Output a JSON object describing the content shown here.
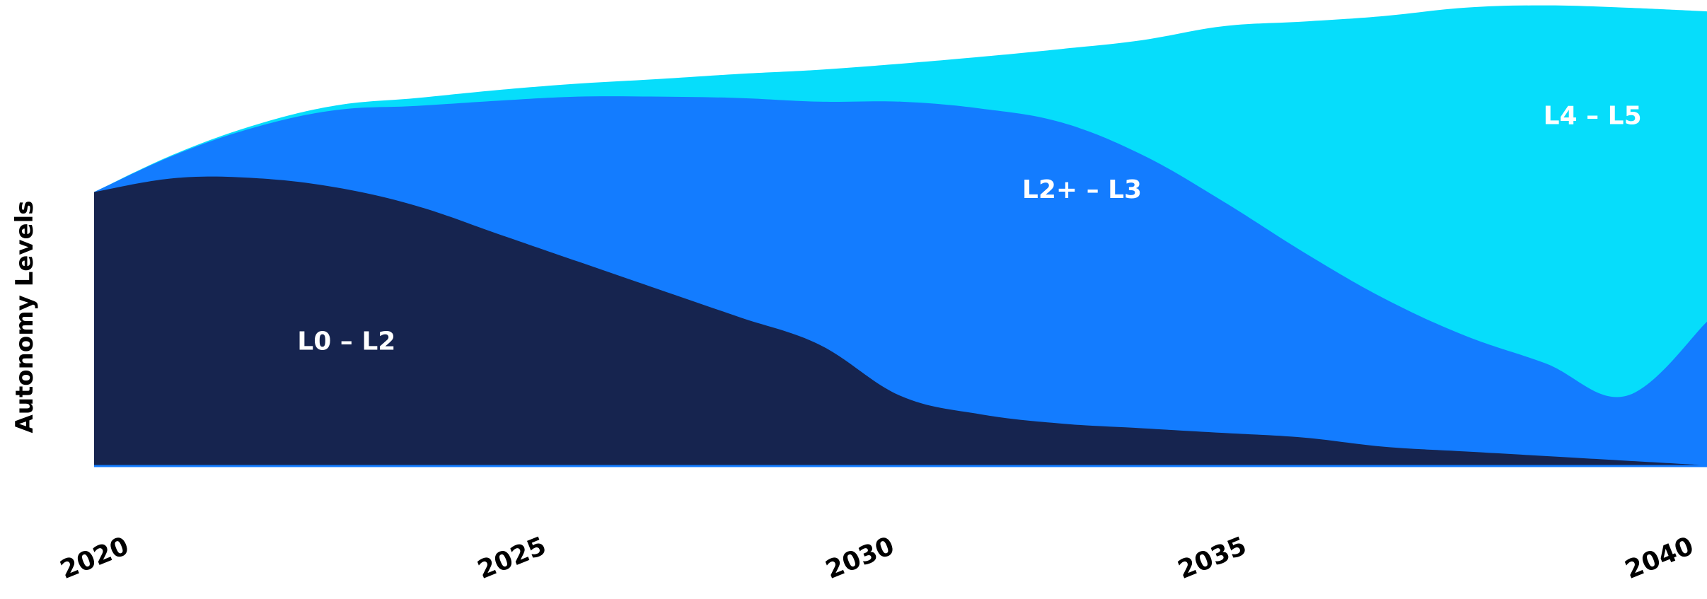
{
  "chart_data": {
    "type": "area",
    "stacked": true,
    "ylabel": "Autonomy Levels",
    "xlabel": "",
    "x_ticks": [
      "2020",
      "2025",
      "2030",
      "2035",
      "2040"
    ],
    "xlim": [
      2020,
      2040
    ],
    "ylim": [
      0,
      100
    ],
    "grid": false,
    "legend": "inline labels",
    "x": [
      2020,
      2021,
      2022,
      2023,
      2024,
      2025,
      2026,
      2027,
      2028,
      2029,
      2030,
      2031,
      2032,
      2033,
      2034,
      2035,
      2036,
      2037,
      2038,
      2039,
      2040
    ],
    "series": [
      {
        "name": "L0 – L2",
        "color": "#16244f",
        "values": [
          59,
          62,
          62,
          60,
          56,
          50,
          44,
          38,
          32,
          26,
          15,
          11,
          9,
          8,
          7,
          6,
          4,
          3,
          2,
          1,
          0
        ]
      },
      {
        "name": "L2+ – L3",
        "color": "#137cff",
        "values": [
          0,
          5,
          11,
          16.7,
          21.6,
          28.7,
          35.6,
          41.6,
          47.3,
          52.5,
          63.5,
          66,
          65,
          59,
          50,
          40,
          32,
          25,
          20,
          14,
          31
        ]
      },
      {
        "name": "L4 – L5",
        "color": "#06ddfb",
        "values": [
          0,
          0.2,
          0.5,
          1,
          1.7,
          2.3,
          2.8,
          3.8,
          5.2,
          6.9,
          8.2,
          11.2,
          15.9,
          24.8,
          37.8,
          49.8,
          61,
          70.8,
          77.3,
          83.8,
          67
        ]
      }
    ]
  }
}
